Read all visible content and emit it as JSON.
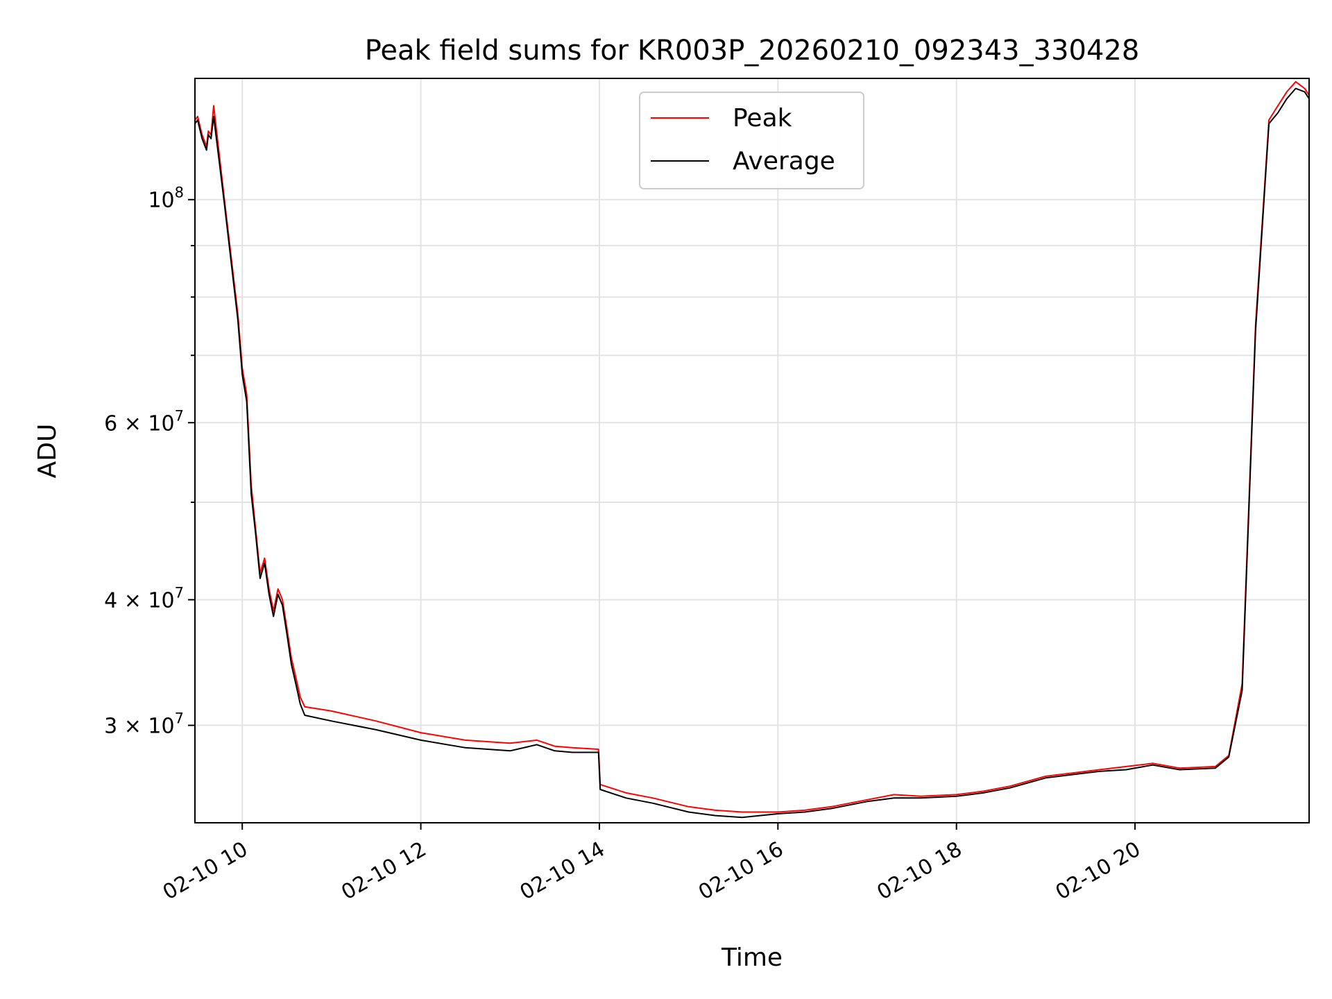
{
  "chart_data": {
    "type": "line",
    "title": "Peak field sums for KR003P_20260210_092343_330428",
    "xlabel": "Time",
    "ylabel": "ADU",
    "yscale": "log",
    "xlim_hours": [
      9.47,
      21.95
    ],
    "ylim": [
      24000000,
      132000000
    ],
    "x_ticks": [
      {
        "hour": 10,
        "label": "02-10 10"
      },
      {
        "hour": 12,
        "label": "02-10 12"
      },
      {
        "hour": 14,
        "label": "02-10 14"
      },
      {
        "hour": 16,
        "label": "02-10 16"
      },
      {
        "hour": 18,
        "label": "02-10 18"
      },
      {
        "hour": 20,
        "label": "02-10 20"
      }
    ],
    "y_major_ticks": [
      {
        "value": 100000000,
        "base": "10",
        "exp": "8"
      },
      {
        "value": 60000000,
        "base": "6 × 10",
        "exp": "7"
      },
      {
        "value": 40000000,
        "base": "4 × 10",
        "exp": "7"
      },
      {
        "value": 30000000,
        "base": "3 × 10",
        "exp": "7"
      }
    ],
    "y_minor_ticks": [
      50000000,
      70000000,
      80000000,
      90000000
    ],
    "legend": {
      "location": "upper center",
      "entries": [
        "Peak",
        "Average"
      ]
    },
    "grid": true,
    "series": [
      {
        "name": "Peak",
        "color": "#ff0000",
        "x_hours": [
          9.47,
          9.5,
          9.55,
          9.6,
          9.62,
          9.65,
          9.68,
          9.8,
          9.95,
          10.0,
          10.05,
          10.1,
          10.15,
          10.2,
          10.25,
          10.3,
          10.35,
          10.4,
          10.45,
          10.5,
          10.55,
          10.6,
          10.65,
          10.7,
          11.0,
          11.5,
          12.0,
          12.5,
          13.0,
          13.3,
          13.5,
          13.7,
          13.99,
          14.01,
          14.3,
          14.6,
          15.0,
          15.3,
          15.6,
          16.0,
          16.3,
          16.6,
          17.0,
          17.3,
          17.6,
          18.0,
          18.3,
          18.6,
          19.0,
          19.3,
          19.6,
          19.9,
          20.2,
          20.5,
          20.9,
          21.05,
          21.2,
          21.35,
          21.5,
          21.6,
          21.7,
          21.8,
          21.9,
          21.95
        ],
        "values": [
          120000000,
          121000000,
          116000000,
          113000000,
          117000000,
          116000000,
          124000000,
          100000000,
          77000000,
          68000000,
          64000000,
          52000000,
          47000000,
          42500000,
          44000000,
          41000000,
          39000000,
          41000000,
          40000000,
          37500000,
          35000000,
          33500000,
          32000000,
          31300000,
          31000000,
          30300000,
          29500000,
          29000000,
          28800000,
          29000000,
          28600000,
          28500000,
          28400000,
          26200000,
          25700000,
          25400000,
          24900000,
          24700000,
          24600000,
          24600000,
          24700000,
          24900000,
          25300000,
          25600000,
          25500000,
          25600000,
          25800000,
          26100000,
          26700000,
          26900000,
          27100000,
          27300000,
          27500000,
          27200000,
          27300000,
          28000000,
          33000000,
          75000000,
          120000000,
          124000000,
          128000000,
          131000000,
          129000000,
          127000000
        ]
      },
      {
        "name": "Average",
        "color": "#000000",
        "x_hours": [
          9.47,
          9.5,
          9.55,
          9.6,
          9.62,
          9.65,
          9.68,
          9.8,
          9.95,
          10.0,
          10.05,
          10.1,
          10.15,
          10.2,
          10.25,
          10.3,
          10.35,
          10.4,
          10.45,
          10.5,
          10.55,
          10.6,
          10.65,
          10.7,
          11.0,
          11.5,
          12.0,
          12.5,
          13.0,
          13.3,
          13.5,
          13.7,
          13.99,
          14.01,
          14.3,
          14.6,
          15.0,
          15.3,
          15.6,
          16.0,
          16.3,
          16.6,
          17.0,
          17.3,
          17.6,
          18.0,
          18.3,
          18.6,
          19.0,
          19.3,
          19.6,
          19.9,
          20.2,
          20.5,
          20.9,
          21.05,
          21.2,
          21.35,
          21.5,
          21.6,
          21.7,
          21.8,
          21.9,
          21.95
        ],
        "values": [
          119000000,
          120000000,
          115000000,
          112000000,
          116000000,
          115000000,
          121000000,
          99000000,
          76000000,
          67000000,
          63000000,
          51000000,
          46500000,
          42000000,
          43500000,
          40500000,
          38500000,
          40500000,
          39500000,
          37000000,
          34500000,
          33000000,
          31500000,
          30700000,
          30300000,
          29700000,
          29000000,
          28500000,
          28300000,
          28700000,
          28300000,
          28200000,
          28200000,
          25900000,
          25400000,
          25100000,
          24600000,
          24400000,
          24300000,
          24500000,
          24600000,
          24800000,
          25200000,
          25400000,
          25400000,
          25500000,
          25700000,
          26000000,
          26600000,
          26800000,
          27000000,
          27100000,
          27400000,
          27100000,
          27200000,
          27900000,
          32500000,
          74000000,
          119000000,
          122000000,
          126000000,
          129000000,
          128000000,
          126000000
        ]
      }
    ]
  }
}
